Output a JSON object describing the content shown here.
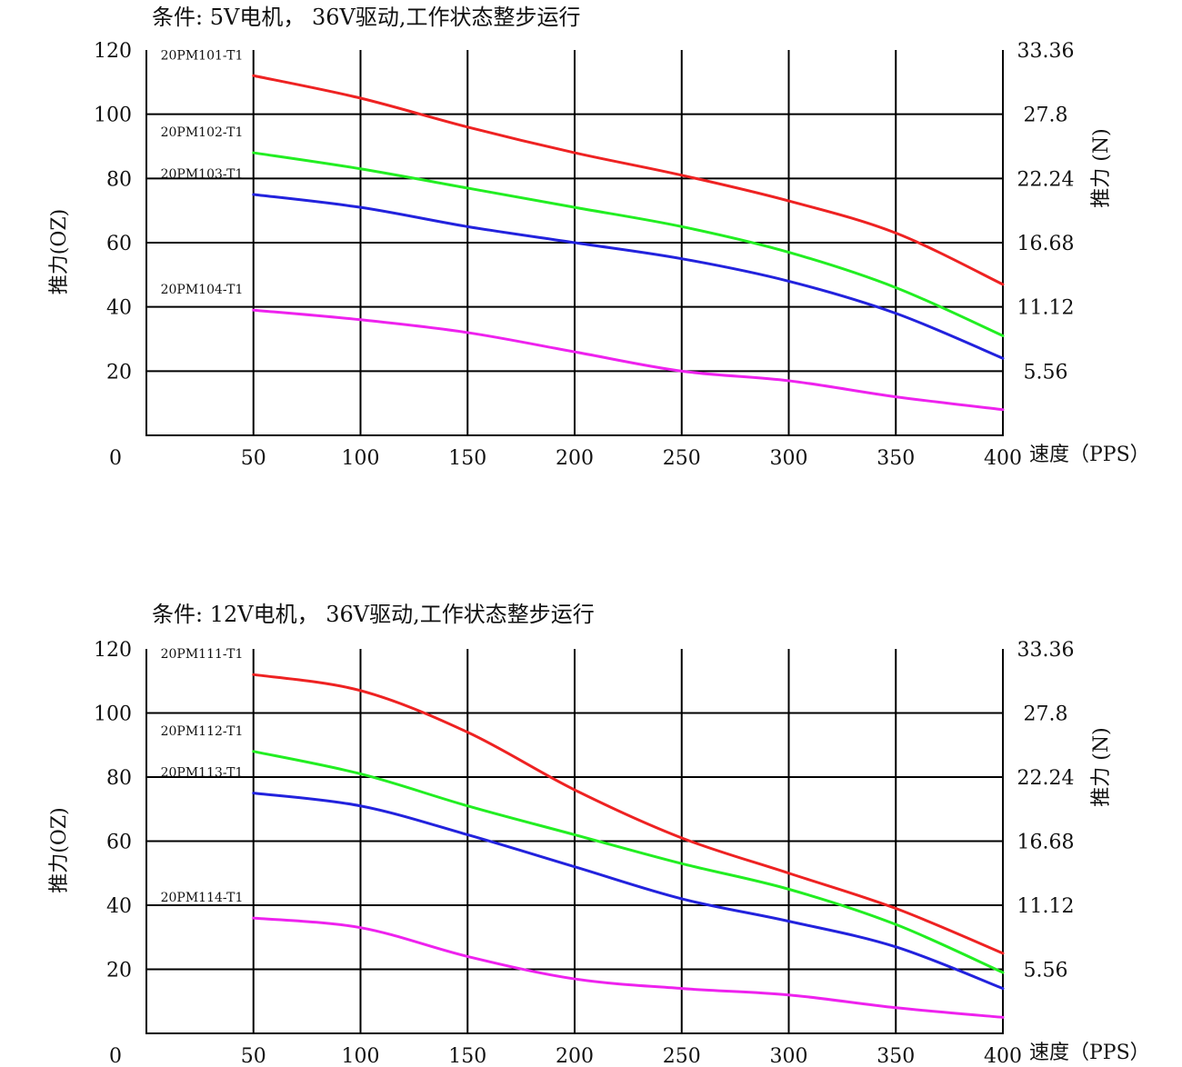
{
  "chart_data": [
    {
      "type": "line",
      "title": "条件: 5V电机， 36V驱动,工作状态整步运行",
      "ylabel": "推力(OZ)",
      "ylabel_right": "推力 (N)",
      "xlabel": "速度（PPS）",
      "xlim": [
        0,
        400
      ],
      "ylim": [
        0,
        120
      ],
      "x_ticks": [
        "0",
        "50",
        "100",
        "150",
        "200",
        "250",
        "300",
        "350",
        "400"
      ],
      "y_ticks": [
        "120",
        "100",
        "80",
        "60",
        "40",
        "20"
      ],
      "y2_ticks": [
        "33.36",
        "27.8",
        "22.24",
        "16.68",
        "11.12",
        "5.56"
      ],
      "grid": true,
      "x": [
        50,
        100,
        150,
        200,
        250,
        300,
        350,
        400
      ],
      "series": [
        {
          "name": "20PM101-T1",
          "color": "#ee2222",
          "values": [
            112,
            105,
            96,
            88,
            81,
            73,
            63,
            47
          ]
        },
        {
          "name": "20PM102-T1",
          "color": "#22ee22",
          "values": [
            88,
            83,
            77,
            71,
            65,
            57,
            46,
            31
          ]
        },
        {
          "name": "20PM103-T1",
          "color": "#2222dd",
          "values": [
            75,
            71,
            65,
            60,
            55,
            48,
            38,
            24
          ]
        },
        {
          "name": "20PM104-T1",
          "color": "#ee22ee",
          "values": [
            39,
            36,
            32,
            26,
            20,
            17,
            12,
            8
          ]
        }
      ]
    },
    {
      "type": "line",
      "title": "条件: 12V电机， 36V驱动,工作状态整步运行",
      "ylabel": "推力(OZ)",
      "ylabel_right": "推力 (N)",
      "xlabel": "速度（PPS）",
      "xlim": [
        0,
        400
      ],
      "ylim": [
        0,
        120
      ],
      "x_ticks": [
        "0",
        "50",
        "100",
        "150",
        "200",
        "250",
        "300",
        "350",
        "400"
      ],
      "y_ticks": [
        "120",
        "100",
        "80",
        "60",
        "40",
        "20"
      ],
      "y2_ticks": [
        "33.36",
        "27.8",
        "22.24",
        "16.68",
        "11.12",
        "5.56"
      ],
      "grid": true,
      "x": [
        50,
        100,
        150,
        200,
        250,
        300,
        350,
        400
      ],
      "series": [
        {
          "name": "20PM111-T1",
          "color": "#ee2222",
          "values": [
            112,
            107,
            94,
            76,
            61,
            50,
            39,
            25
          ]
        },
        {
          "name": "20PM112-T1",
          "color": "#22ee22",
          "values": [
            88,
            81,
            71,
            62,
            53,
            45,
            34,
            19
          ]
        },
        {
          "name": "20PM113-T1",
          "color": "#2222dd",
          "values": [
            75,
            71,
            62,
            52,
            42,
            35,
            27,
            14
          ]
        },
        {
          "name": "20PM114-T1",
          "color": "#ee22ee",
          "values": [
            36,
            33,
            24,
            17,
            14,
            12,
            8,
            5
          ]
        }
      ]
    }
  ]
}
